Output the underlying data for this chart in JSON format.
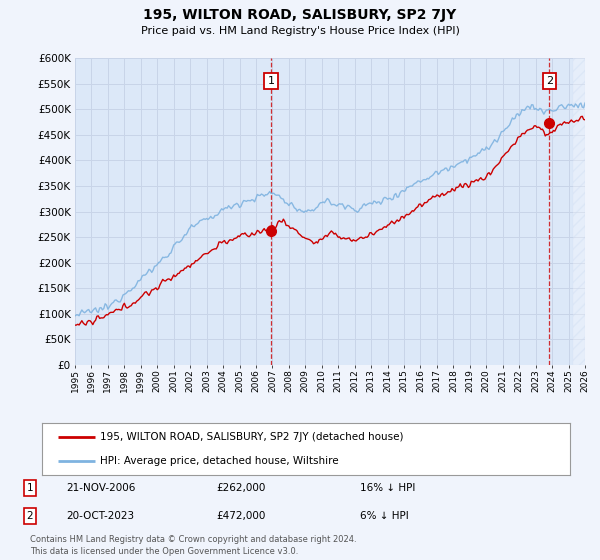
{
  "title": "195, WILTON ROAD, SALISBURY, SP2 7JY",
  "subtitle": "Price paid vs. HM Land Registry's House Price Index (HPI)",
  "footer": "Contains HM Land Registry data © Crown copyright and database right 2024.\nThis data is licensed under the Open Government Licence v3.0.",
  "legend_label_red": "195, WILTON ROAD, SALISBURY, SP2 7JY (detached house)",
  "legend_label_blue": "HPI: Average price, detached house, Wiltshire",
  "annotation1_date": "21-NOV-2006",
  "annotation1_price": "£262,000",
  "annotation1_hpi": "16% ↓ HPI",
  "annotation2_date": "20-OCT-2023",
  "annotation2_price": "£472,000",
  "annotation2_hpi": "6% ↓ HPI",
  "ylim": [
    0,
    600000
  ],
  "yticks": [
    0,
    50000,
    100000,
    150000,
    200000,
    250000,
    300000,
    350000,
    400000,
    450000,
    500000,
    550000,
    600000
  ],
  "hpi_color": "#7fb3e0",
  "price_color": "#cc0000",
  "marker_color": "#cc0000",
  "vline_color": "#cc0000",
  "grid_color": "#c8d4e8",
  "background_color": "#f0f4fc",
  "plot_bg_color": "#dce8f8",
  "annotation_box_color": "#cc0000",
  "hatch_color": "#c8d8f0",
  "xmin": 1995,
  "xmax": 2026,
  "sale1_year": 2006,
  "sale1_month": 11,
  "sale1_price": 262000,
  "sale2_year": 2023,
  "sale2_month": 10,
  "sale2_price": 472000
}
